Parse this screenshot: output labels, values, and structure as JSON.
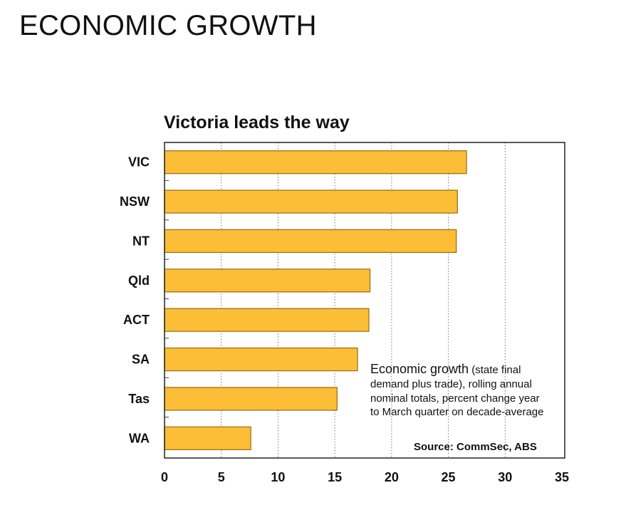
{
  "page": {
    "title": "ECONOMIC GROWTH"
  },
  "chart_data": {
    "type": "bar",
    "orientation": "horizontal",
    "title": "Victoria leads the way",
    "categories": [
      "VIC",
      "NSW",
      "NT",
      "Qld",
      "ACT",
      "SA",
      "Tas",
      "WA"
    ],
    "values": [
      26.6,
      25.8,
      25.7,
      18.1,
      18.0,
      17.0,
      15.2,
      7.6
    ],
    "xlim": [
      0,
      35
    ],
    "xticks": [
      0,
      5,
      10,
      15,
      20,
      25,
      30,
      35
    ],
    "grid": "vertical dotted",
    "bar_color": "#FBBE36",
    "bar_edge_color": "#9A6A10",
    "annotation": {
      "lead": "Economic growth",
      "rest": " (state final",
      "lines": [
        "demand plus trade), rolling annual",
        "nominal totals, percent change year",
        "to March quarter on decade-average"
      ]
    },
    "source": "Source: CommSec, ABS"
  }
}
